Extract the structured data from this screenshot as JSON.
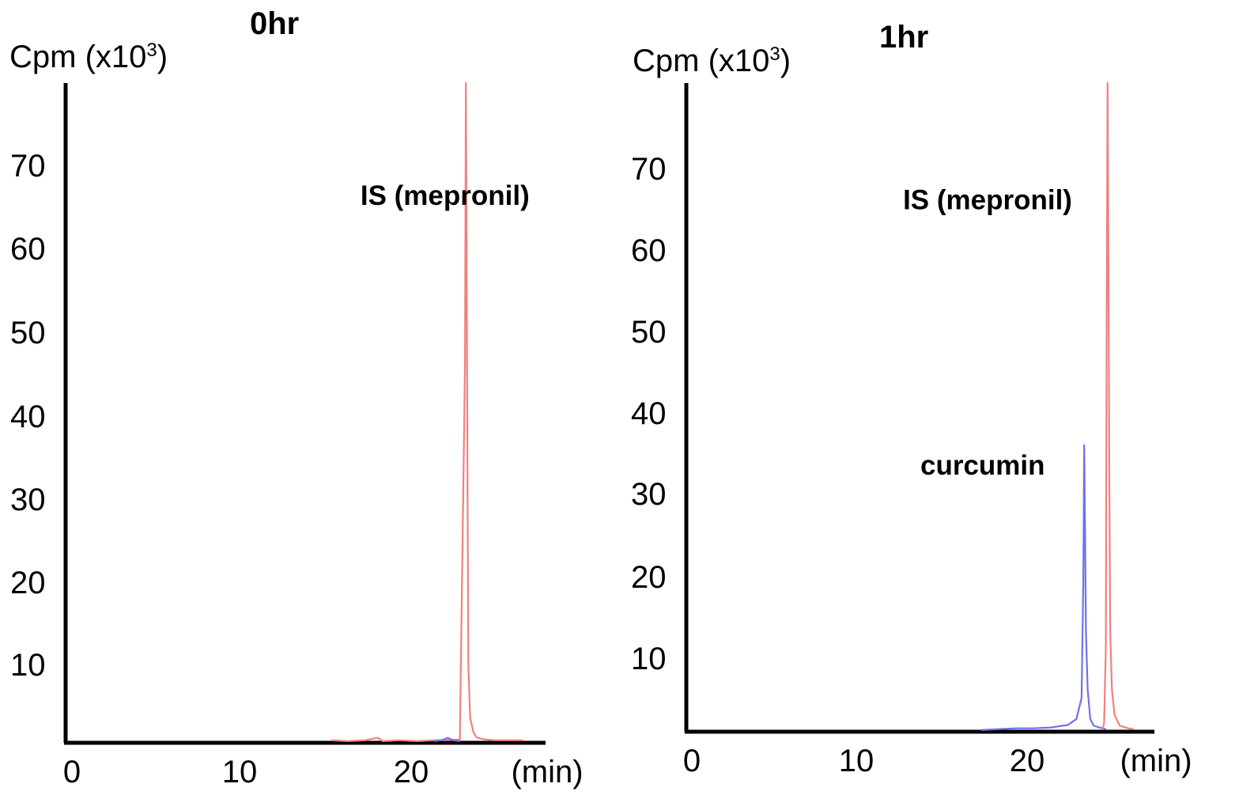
{
  "chart_data": [
    {
      "type": "line",
      "title": "0hr",
      "ylabel": {
        "prefix": "Cpm (x10",
        "sup": "3",
        "suffix": ")"
      },
      "xunit": "(min)",
      "x_ticks": [
        0,
        10,
        20
      ],
      "y_ticks": [
        10,
        20,
        30,
        40,
        50,
        60,
        70
      ],
      "xlim": [
        0,
        28
      ],
      "ylim": [
        0,
        78.5
      ],
      "annotations": [
        {
          "text": "IS (mepronil)",
          "x": 17.2,
          "y": 64
        }
      ],
      "series": [
        {
          "color": "#f08080",
          "points": [
            [
              15.5,
              0.3
            ],
            [
              16.5,
              0.2
            ],
            [
              17.5,
              0.3
            ],
            [
              18.2,
              0.6
            ],
            [
              18.5,
              0.2
            ],
            [
              19.5,
              0.3
            ],
            [
              20.5,
              0.2
            ],
            [
              21.5,
              0.3
            ],
            [
              22.0,
              0.3
            ],
            [
              23.0,
              0.4
            ],
            [
              23.3,
              45
            ],
            [
              23.35,
              78.5
            ],
            [
              23.4,
              55
            ],
            [
              23.45,
              28
            ],
            [
              23.5,
              9
            ],
            [
              23.6,
              3
            ],
            [
              23.8,
              1.2
            ],
            [
              24.0,
              0.6
            ],
            [
              24.5,
              0.4
            ],
            [
              25.0,
              0.3
            ],
            [
              26.0,
              0.3
            ],
            [
              26.7,
              0.3
            ]
          ]
        },
        {
          "color": "#7070ee",
          "points": [
            [
              21.5,
              0.2
            ],
            [
              22.0,
              0.35
            ],
            [
              22.3,
              0.6
            ],
            [
              22.6,
              0.3
            ],
            [
              23.0,
              0.2
            ]
          ]
        }
      ]
    },
    {
      "type": "line",
      "title": "1hr",
      "ylabel": {
        "prefix": "Cpm (x10",
        "sup": "3",
        "suffix": ")"
      },
      "xunit": "(min)",
      "x_ticks": [
        0,
        10,
        20
      ],
      "y_ticks": [
        10,
        20,
        30,
        40,
        50,
        60,
        70
      ],
      "xlim": [
        0,
        27
      ],
      "ylim": [
        0,
        77
      ],
      "annotations": [
        {
          "text": "IS (mepronil)",
          "x": 12.5,
          "y": 62
        },
        {
          "text": "curcumin",
          "x": 13.5,
          "y": 30.5
        }
      ],
      "series": [
        {
          "color": "#7070ee",
          "points": [
            [
              17.0,
              0.2
            ],
            [
              18.0,
              0.3
            ],
            [
              19.0,
              0.4
            ],
            [
              20.0,
              0.4
            ],
            [
              21.0,
              0.5
            ],
            [
              22.0,
              0.8
            ],
            [
              22.5,
              1.5
            ],
            [
              22.8,
              4
            ],
            [
              22.9,
              18
            ],
            [
              22.95,
              34
            ],
            [
              23.0,
              24
            ],
            [
              23.05,
              12
            ],
            [
              23.15,
              5
            ],
            [
              23.3,
              1.5
            ],
            [
              23.5,
              0.7
            ],
            [
              24.0,
              0.4
            ],
            [
              24.2,
              0.3
            ]
          ]
        },
        {
          "color": "#f08080",
          "points": [
            [
              24.0,
              0.2
            ],
            [
              24.1,
              1.0
            ],
            [
              24.2,
              10
            ],
            [
              24.25,
              50
            ],
            [
              24.3,
              77
            ],
            [
              24.35,
              55
            ],
            [
              24.4,
              30
            ],
            [
              24.45,
              12
            ],
            [
              24.55,
              5
            ],
            [
              24.7,
              2
            ],
            [
              25.0,
              0.7
            ],
            [
              25.5,
              0.4
            ],
            [
              25.8,
              0.3
            ]
          ]
        }
      ]
    }
  ]
}
